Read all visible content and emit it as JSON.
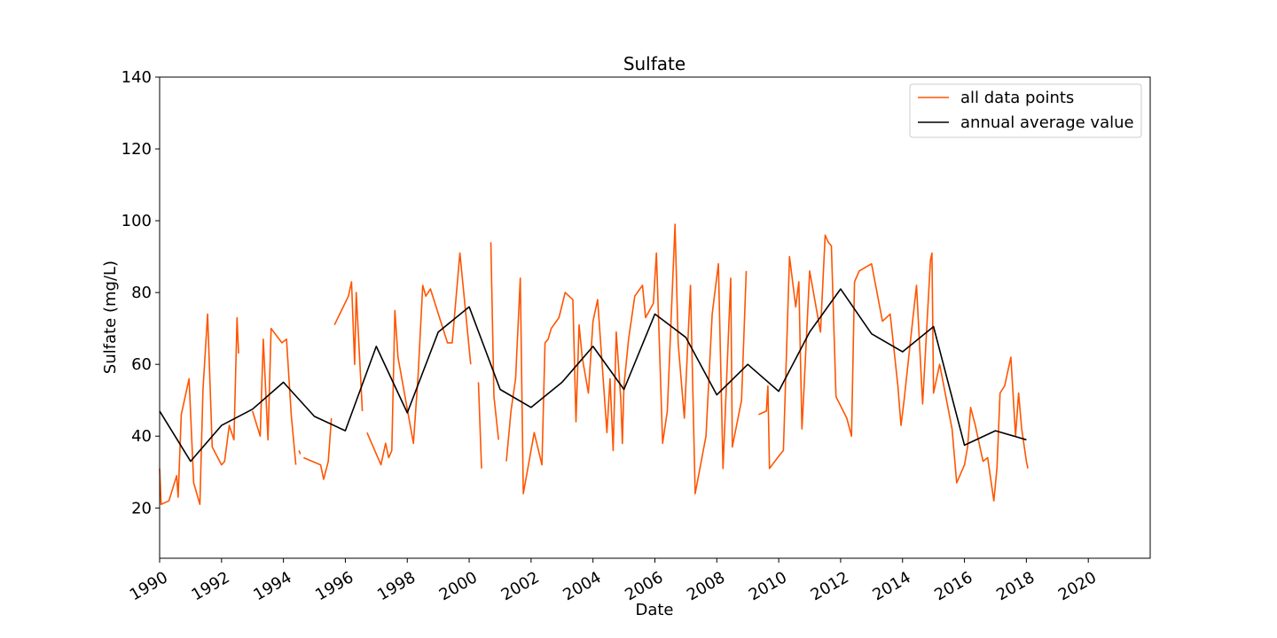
{
  "chart_data": {
    "type": "line",
    "title": "Sulfate",
    "xlabel": "Date",
    "ylabel": "Sulfate (mg/L)",
    "xlim": [
      1990,
      2022
    ],
    "ylim": [
      6,
      140
    ],
    "x_ticks": [
      "1990",
      "1992",
      "1994",
      "1996",
      "1998",
      "2000",
      "2002",
      "2004",
      "2006",
      "2008",
      "2010",
      "2012",
      "2014",
      "2016",
      "2018",
      "2020"
    ],
    "y_ticks": [
      20,
      40,
      60,
      80,
      100,
      120,
      140
    ],
    "grid": false,
    "legend": "upper right",
    "series": [
      {
        "name": "all data points",
        "color": "#ff5500",
        "segments": [
          [
            [
              1990.0,
              31
            ],
            [
              1990.05,
              21
            ],
            [
              1990.3,
              22
            ],
            [
              1990.55,
              29
            ],
            [
              1990.6,
              23
            ],
            [
              1990.7,
              46
            ],
            [
              1990.95,
              56
            ],
            [
              1991.1,
              27
            ],
            [
              1991.3,
              21
            ],
            [
              1991.4,
              53
            ],
            [
              1991.55,
              74
            ],
            [
              1991.7,
              37
            ],
            [
              1992.0,
              32
            ],
            [
              1992.1,
              33
            ],
            [
              1992.25,
              43
            ],
            [
              1992.4,
              39
            ],
            [
              1992.5,
              73
            ],
            [
              1992.55,
              63
            ]
          ],
          [
            [
              1993.0,
              47
            ],
            [
              1993.25,
              40
            ],
            [
              1993.35,
              67
            ],
            [
              1993.5,
              39
            ],
            [
              1993.6,
              70
            ],
            [
              1993.95,
              66
            ],
            [
              1994.1,
              67
            ],
            [
              1994.25,
              46
            ],
            [
              1994.4,
              32
            ]
          ],
          [
            [
              1994.5,
              36
            ],
            [
              1994.55,
              35
            ]
          ],
          [
            [
              1994.65,
              34
            ],
            [
              1995.2,
              32
            ],
            [
              1995.3,
              28
            ],
            [
              1995.45,
              33
            ],
            [
              1995.55,
              45
            ]
          ],
          [
            [
              1995.65,
              71
            ],
            [
              1996.1,
              79
            ],
            [
              1996.2,
              83
            ],
            [
              1996.3,
              60
            ],
            [
              1996.35,
              80
            ],
            [
              1996.55,
              47
            ]
          ],
          [
            [
              1996.7,
              41
            ],
            [
              1997.15,
              32
            ],
            [
              1997.3,
              38
            ],
            [
              1997.4,
              34
            ],
            [
              1997.5,
              36
            ],
            [
              1997.6,
              75
            ],
            [
              1997.7,
              62
            ],
            [
              1998.2,
              38
            ],
            [
              1998.35,
              57
            ],
            [
              1998.5,
              82
            ],
            [
              1998.6,
              79
            ],
            [
              1998.75,
              81
            ],
            [
              1999.3,
              66
            ],
            [
              1999.45,
              66
            ],
            [
              1999.7,
              91
            ],
            [
              2000.05,
              60
            ]
          ],
          [
            [
              2000.3,
              55
            ],
            [
              2000.4,
              31
            ]
          ],
          [
            [
              2000.7,
              94
            ],
            [
              2000.8,
              51
            ],
            [
              2000.95,
              39
            ]
          ],
          [
            [
              2001.2,
              33
            ],
            [
              2001.35,
              47
            ],
            [
              2001.5,
              56
            ],
            [
              2001.65,
              84
            ],
            [
              2001.75,
              24
            ],
            [
              2002.1,
              41
            ],
            [
              2002.35,
              32
            ],
            [
              2002.45,
              66
            ],
            [
              2002.55,
              67
            ],
            [
              2002.65,
              70
            ],
            [
              2002.9,
              73
            ],
            [
              2003.1,
              80
            ],
            [
              2003.35,
              78
            ],
            [
              2003.45,
              44
            ],
            [
              2003.55,
              71
            ],
            [
              2003.65,
              62
            ],
            [
              2003.85,
              52
            ],
            [
              2004.0,
              72
            ],
            [
              2004.15,
              78
            ],
            [
              2004.45,
              41
            ],
            [
              2004.55,
              56
            ],
            [
              2004.65,
              36
            ],
            [
              2004.75,
              69
            ],
            [
              2004.9,
              50
            ],
            [
              2004.95,
              38
            ],
            [
              2005.0,
              54
            ],
            [
              2005.15,
              67
            ],
            [
              2005.35,
              79
            ],
            [
              2005.6,
              82
            ],
            [
              2005.7,
              73
            ],
            [
              2005.95,
              77
            ],
            [
              2006.05,
              91
            ],
            [
              2006.25,
              38
            ],
            [
              2006.4,
              47
            ],
            [
              2006.65,
              99
            ],
            [
              2006.75,
              66
            ],
            [
              2006.95,
              45
            ],
            [
              2007.15,
              82
            ],
            [
              2007.3,
              24
            ],
            [
              2007.65,
              40
            ],
            [
              2007.85,
              74
            ],
            [
              2008.05,
              88
            ],
            [
              2008.2,
              31
            ],
            [
              2008.45,
              84
            ],
            [
              2008.5,
              37
            ],
            [
              2008.8,
              50
            ],
            [
              2008.95,
              86
            ]
          ],
          [
            [
              2009.35,
              46
            ],
            [
              2009.6,
              47
            ],
            [
              2009.65,
              54
            ],
            [
              2009.7,
              31
            ],
            [
              2010.05,
              35
            ],
            [
              2010.15,
              36
            ],
            [
              2010.35,
              90
            ],
            [
              2010.55,
              76
            ],
            [
              2010.65,
              83
            ],
            [
              2010.75,
              42
            ],
            [
              2010.8,
              50
            ],
            [
              2011.0,
              86
            ],
            [
              2011.35,
              69
            ],
            [
              2011.5,
              96
            ],
            [
              2011.6,
              94
            ],
            [
              2011.7,
              93
            ],
            [
              2011.85,
              51
            ],
            [
              2012.2,
              45
            ],
            [
              2012.35,
              40
            ],
            [
              2012.45,
              83
            ],
            [
              2012.6,
              86
            ],
            [
              2013.0,
              88
            ],
            [
              2013.35,
              72
            ],
            [
              2013.6,
              74
            ],
            [
              2013.85,
              54
            ],
            [
              2013.95,
              43
            ],
            [
              2014.05,
              50
            ],
            [
              2014.3,
              70
            ],
            [
              2014.45,
              82
            ],
            [
              2014.65,
              49
            ],
            [
              2014.9,
              89
            ],
            [
              2014.95,
              91
            ],
            [
              2015.0,
              52
            ],
            [
              2015.2,
              60
            ],
            [
              2015.6,
              42
            ],
            [
              2015.75,
              27
            ],
            [
              2016.0,
              32
            ],
            [
              2016.1,
              37
            ],
            [
              2016.2,
              48
            ],
            [
              2016.35,
              43
            ],
            [
              2016.6,
              33
            ],
            [
              2016.75,
              34
            ],
            [
              2016.95,
              22
            ],
            [
              2017.05,
              31
            ],
            [
              2017.15,
              52
            ],
            [
              2017.3,
              54
            ],
            [
              2017.5,
              62
            ],
            [
              2017.65,
              40
            ],
            [
              2017.75,
              52
            ],
            [
              2017.85,
              42
            ],
            [
              2018.0,
              33
            ],
            [
              2018.05,
              31
            ]
          ]
        ]
      },
      {
        "name": "annual average value",
        "color": "#000000",
        "x": [
          1990,
          1991,
          1992,
          1993,
          1994,
          1995,
          1996,
          1997,
          1998,
          1999,
          2000,
          2001,
          2002,
          2003,
          2004,
          2005,
          2006,
          2007,
          2008,
          2009,
          2010,
          2011,
          2012,
          2013,
          2014,
          2015,
          2016,
          2017,
          2018
        ],
        "values": [
          47,
          33,
          43,
          47.5,
          55,
          45.5,
          41.5,
          65,
          46.5,
          69,
          76,
          53,
          48,
          55,
          65,
          53,
          74,
          67.5,
          51.5,
          60,
          52.5,
          69,
          81,
          68.5,
          63.5,
          70.5,
          37.5,
          41.5,
          39
        ]
      }
    ]
  }
}
